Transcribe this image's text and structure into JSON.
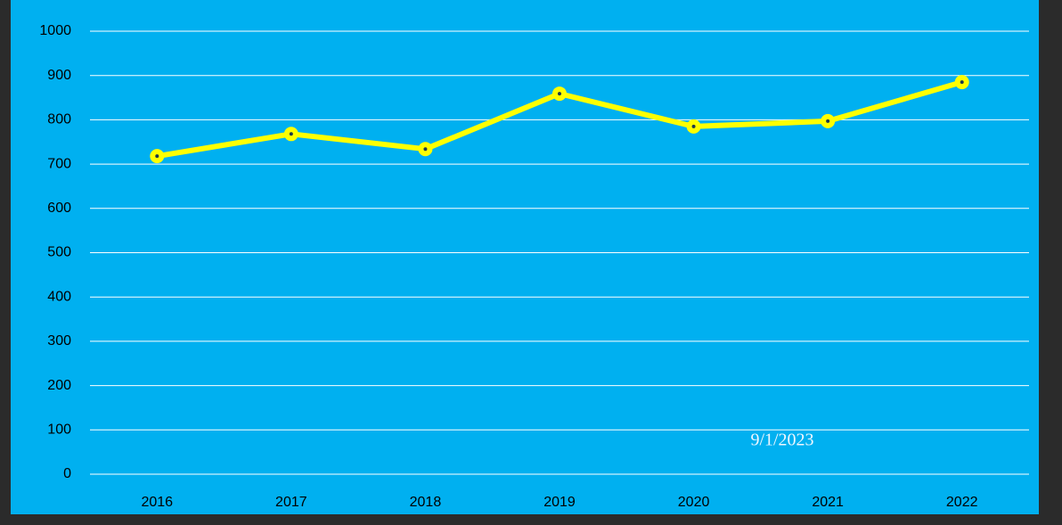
{
  "chart_data": {
    "type": "line",
    "categories": [
      "2016",
      "2017",
      "2018",
      "2019",
      "2020",
      "2021",
      "2022"
    ],
    "series": [
      {
        "color": "#ffff00",
        "values": [
          718,
          768,
          734,
          859,
          785,
          797,
          885
        ]
      }
    ],
    "ylim": [
      0,
      1000
    ],
    "yticks": [
      0,
      100,
      200,
      300,
      400,
      500,
      600,
      700,
      800,
      900,
      1000
    ],
    "grid": true,
    "annotations": [
      "9/1/2023"
    ]
  }
}
